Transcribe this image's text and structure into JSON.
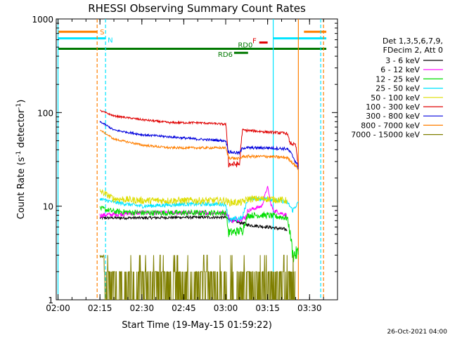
{
  "chart_data": {
    "type": "line",
    "title": "RHESSI Observing Summary Count Rates",
    "xlabel": "Start Time (19-May-15 01:59:22)",
    "ylabel": "Count Rate (s⁻¹ detector⁻¹)",
    "ylabel_parts": [
      "Count Rate (s",
      "-1",
      " detector",
      "-1",
      ")"
    ],
    "y_scale": "log",
    "ylim": [
      1,
      1000
    ],
    "xlim": [
      "01:59:22",
      "03:40:00"
    ],
    "x_ticks": [
      "02:00",
      "02:15",
      "02:30",
      "02:45",
      "03:00",
      "03:15",
      "03:30"
    ],
    "y_ticks": [
      "1",
      "10",
      "100",
      "1000"
    ],
    "legend_position": "right",
    "legend_header": [
      "Det 1,3,5,6,7,9,",
      "FDecim 2, Att 0"
    ],
    "footer_date": "26-Oct-2021 04:00",
    "flags": [
      {
        "label": "S",
        "color": "#ff7f00",
        "y": 730,
        "segments": [
          [
            "02:00",
            "02:14"
          ],
          [
            "03:28",
            "03:36"
          ]
        ]
      },
      {
        "label": "N",
        "color": "#00e5ff",
        "y": 620,
        "segments": [
          [
            "02:00",
            "02:17"
          ],
          [
            "03:17",
            "03:36"
          ]
        ]
      },
      {
        "label": "RD0",
        "color": "#007800",
        "y": 480,
        "segments": [
          [
            "02:00",
            "03:36"
          ]
        ]
      },
      {
        "label": "RD6",
        "color": "#007800",
        "y": 435,
        "segments": [
          [
            "03:03",
            "03:08"
          ]
        ]
      },
      {
        "label": "F",
        "color": "#e00000",
        "y": 560,
        "segments": [
          [
            "03:12",
            "03:15"
          ]
        ]
      }
    ],
    "vertical_lines": [
      {
        "time": "02:00",
        "color": "#00e5ff",
        "style": "solid"
      },
      {
        "time": "02:14",
        "color": "#ff7f00",
        "style": "dashed"
      },
      {
        "time": "02:17",
        "color": "#00e5ff",
        "style": "dashed"
      },
      {
        "time": "03:17",
        "color": "#00e5ff",
        "style": "solid"
      },
      {
        "time": "03:26",
        "color": "#ff7f00",
        "style": "solid"
      },
      {
        "time": "03:34",
        "color": "#00e5ff",
        "style": "dashed"
      },
      {
        "time": "03:35",
        "color": "#ff7f00",
        "style": "dashed"
      }
    ],
    "series": [
      {
        "name": "3 - 6 keV",
        "color": "#000000",
        "noise": 0.25,
        "points": [
          [
            "02:15",
            7.5
          ],
          [
            "02:30",
            7.5
          ],
          [
            "02:45",
            7.6
          ],
          [
            "03:00",
            7.6
          ],
          [
            "03:02",
            7.0
          ],
          [
            "03:07",
            6.5
          ],
          [
            "03:08",
            6.3
          ],
          [
            "03:15",
            6.0
          ],
          [
            "03:22",
            5.6
          ]
        ]
      },
      {
        "name": "6 - 12 keV",
        "color": "#ff00ff",
        "noise": 0.45,
        "points": [
          [
            "02:15",
            8.0
          ],
          [
            "02:30",
            8.5
          ],
          [
            "02:45",
            8.5
          ],
          [
            "03:00",
            8.5
          ],
          [
            "03:02",
            7.0
          ],
          [
            "03:07",
            7.5
          ],
          [
            "03:08",
            9.0
          ],
          [
            "03:13",
            10.0
          ],
          [
            "03:15",
            16.0
          ],
          [
            "03:16",
            11.0
          ],
          [
            "03:17",
            9.0
          ],
          [
            "03:22",
            8.0
          ]
        ]
      },
      {
        "name": "12 - 25 keV",
        "color": "#00dd00",
        "noise": 0.6,
        "points": [
          [
            "02:15",
            9.5
          ],
          [
            "02:20",
            8.8
          ],
          [
            "02:30",
            8.5
          ],
          [
            "02:45",
            8.5
          ],
          [
            "03:00",
            8.5
          ],
          [
            "03:01",
            5.2
          ],
          [
            "03:06",
            5.5
          ],
          [
            "03:08",
            8.0
          ],
          [
            "03:15",
            8.0
          ],
          [
            "03:22",
            7.5
          ],
          [
            "03:24",
            3.0
          ],
          [
            "03:26",
            3.2
          ]
        ]
      },
      {
        "name": "25 - 50 keV",
        "color": "#00e5ff",
        "noise": 0.5,
        "points": [
          [
            "02:15",
            12.0
          ],
          [
            "02:20",
            11.0
          ],
          [
            "02:30",
            10.0
          ],
          [
            "02:45",
            10.5
          ],
          [
            "03:00",
            10.5
          ],
          [
            "03:01",
            7.0
          ],
          [
            "03:06",
            7.5
          ],
          [
            "03:08",
            12.0
          ],
          [
            "03:15",
            12.0
          ],
          [
            "03:22",
            11.0
          ],
          [
            "03:24",
            9.0
          ],
          [
            "03:26",
            11.0
          ]
        ]
      },
      {
        "name": "50 - 100 keV",
        "color": "#dddd00",
        "noise": 1.0,
        "points": [
          [
            "02:15",
            14.5
          ],
          [
            "02:20",
            12.0
          ],
          [
            "02:30",
            11.5
          ],
          [
            "02:45",
            11.5
          ],
          [
            "03:00",
            11.5
          ],
          [
            "03:01",
            11.0
          ],
          [
            "03:06",
            11.0
          ],
          [
            "03:08",
            12.0
          ],
          [
            "03:15",
            12.0
          ],
          [
            "03:22",
            11.5
          ]
        ]
      },
      {
        "name": "100 - 300 keV",
        "color": "#e00000",
        "noise": 2.0,
        "points": [
          [
            "02:15",
            105
          ],
          [
            "02:20",
            92
          ],
          [
            "02:30",
            84
          ],
          [
            "02:40",
            78
          ],
          [
            "02:50",
            78
          ],
          [
            "03:00",
            75
          ],
          [
            "03:01",
            28
          ],
          [
            "03:05",
            28
          ],
          [
            "03:06",
            65
          ],
          [
            "03:15",
            62
          ],
          [
            "03:22",
            60
          ],
          [
            "03:23",
            47
          ],
          [
            "03:25",
            45
          ],
          [
            "03:26",
            25
          ]
        ]
      },
      {
        "name": "300 - 800 keV",
        "color": "#0000dd",
        "noise": 1.5,
        "points": [
          [
            "02:15",
            80
          ],
          [
            "02:20",
            65
          ],
          [
            "02:30",
            58
          ],
          [
            "02:40",
            55
          ],
          [
            "02:50",
            52
          ],
          [
            "03:00",
            50
          ],
          [
            "03:01",
            38
          ],
          [
            "03:05",
            37
          ],
          [
            "03:06",
            42
          ],
          [
            "03:15",
            42
          ],
          [
            "03:22",
            41
          ],
          [
            "03:23",
            38
          ],
          [
            "03:26",
            26
          ]
        ]
      },
      {
        "name": "800 - 7000 keV",
        "color": "#ff7f00",
        "noise": 1.2,
        "points": [
          [
            "02:15",
            65
          ],
          [
            "02:20",
            52
          ],
          [
            "02:30",
            45
          ],
          [
            "02:40",
            42
          ],
          [
            "02:50",
            42
          ],
          [
            "03:00",
            42
          ],
          [
            "03:01",
            33
          ],
          [
            "03:05",
            32
          ],
          [
            "03:06",
            34
          ],
          [
            "03:15",
            34
          ],
          [
            "03:22",
            33
          ],
          [
            "03:23",
            31
          ],
          [
            "03:26",
            25
          ]
        ]
      },
      {
        "name": "7000 - 15000 keV",
        "color": "#7f7f00",
        "noise": 0.0,
        "points": [
          [
            "02:15",
            2.5
          ],
          [
            "02:20",
            1.6
          ],
          [
            "02:30",
            1.5
          ],
          [
            "02:45",
            1.5
          ],
          [
            "03:00",
            1.6
          ],
          [
            "03:15",
            1.8
          ],
          [
            "03:25",
            2.0
          ]
        ]
      }
    ]
  }
}
